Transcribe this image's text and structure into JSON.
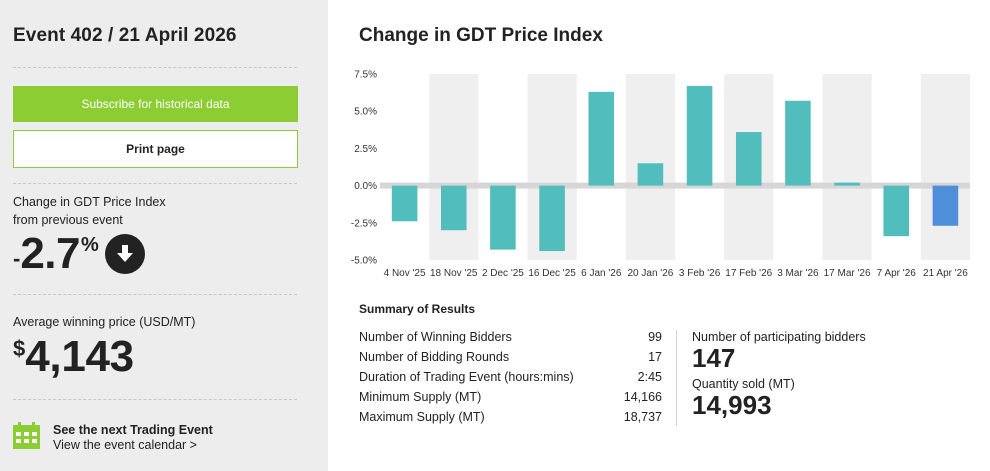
{
  "sidebar": {
    "event_title": "Event 402 / 21 April 2026",
    "subscribe_label": "Subscribe for historical data",
    "print_label": "Print page",
    "change_label_1": "Change in GDT Price Index",
    "change_label_2": "from previous event",
    "change_sign": "-",
    "change_value": "2.7",
    "change_unit": "%",
    "change_direction_icon": "arrow-down-circle-icon",
    "avg_price_label": "Average winning price (USD/MT)",
    "avg_price_currency": "$",
    "avg_price_value": "4,143",
    "next_event_title": "See the next Trading Event",
    "next_event_link": "View the event calendar >"
  },
  "main": {
    "chart_title": "Change in GDT Price Index"
  },
  "chart_data": {
    "type": "bar",
    "title": "Change in GDT Price Index",
    "categories": [
      "4 Nov '25",
      "18 Nov '25",
      "2 Dec '25",
      "16 Dec '25",
      "6 Jan '26",
      "20 Jan '26",
      "3 Feb '26",
      "17 Feb '26",
      "3 Mar '26",
      "17 Mar '26",
      "7 Apr '26",
      "21 Apr '26"
    ],
    "values": [
      -2.4,
      -3.0,
      -4.3,
      -4.4,
      6.3,
      1.5,
      6.7,
      3.6,
      5.7,
      0.2,
      -3.4,
      -2.7
    ],
    "ylim": [
      -5.0,
      7.5
    ],
    "yticks": [
      "7.5%",
      "5.0%",
      "2.5%",
      "0.0%",
      "-2.5%",
      "-5.0%"
    ],
    "ytick_values": [
      7.5,
      5.0,
      2.5,
      0.0,
      -2.5,
      -5.0
    ],
    "colors": {
      "bar": "#52bdbd",
      "current": "#4f8fd9",
      "band": "#efefef",
      "zero_line": "#d6d6d6"
    },
    "grid": false
  },
  "summary": {
    "title": "Summary of Results",
    "rows": [
      {
        "label": "Number of Winning Bidders",
        "value": "99"
      },
      {
        "label": "Number of Bidding Rounds",
        "value": "17"
      },
      {
        "label": "Duration of Trading Event (hours:mins)",
        "value": "2:45"
      },
      {
        "label": "Minimum Supply (MT)",
        "value": "14,166"
      },
      {
        "label": "Maximum Supply (MT)",
        "value": "18,737"
      }
    ],
    "participating_label": "Number of participating bidders",
    "participating_value": "147",
    "quantity_label": "Quantity sold (MT)",
    "quantity_value": "14,993"
  },
  "colors": {
    "accent": "#8ccd34",
    "sidebar_bg": "#ededed",
    "text": "#222222"
  }
}
